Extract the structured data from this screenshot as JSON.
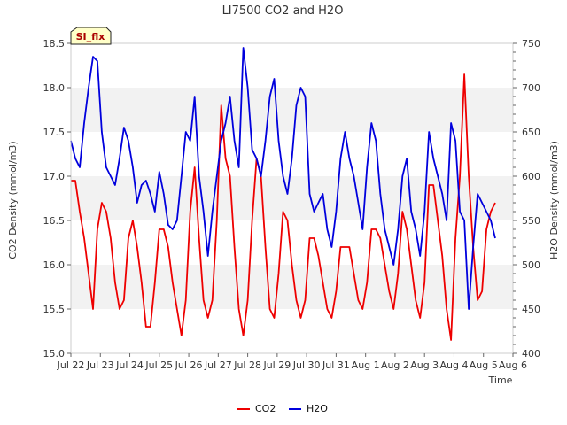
{
  "chart_data": {
    "type": "line",
    "title": "LI7500 CO2 and H2O",
    "xlabel": "Time",
    "ylabel_left": "CO2 Density (mmol/m3)",
    "ylabel_right": "H2O Density (mmol/m3)",
    "badge": "SI_flx",
    "x_ticks": [
      "Jul 22",
      "Jul 23",
      "Jul 24",
      "Jul 25",
      "Jul 26",
      "Jul 27",
      "Jul 28",
      "Jul 29",
      "Jul 30",
      "Jul 31",
      "Aug 1",
      "Aug 2",
      "Aug 3",
      "Aug 4",
      "Aug 5",
      "Aug 6"
    ],
    "xlim": [
      0,
      15
    ],
    "ylim_left": [
      15.0,
      18.5
    ],
    "yticks_left": [
      "15.0",
      "15.5",
      "16.0",
      "16.5",
      "17.0",
      "17.5",
      "18.0",
      "18.5"
    ],
    "ylim_right": [
      400,
      750
    ],
    "yticks_right": [
      "400",
      "450",
      "500",
      "550",
      "600",
      "650",
      "700",
      "750"
    ],
    "grid": "horizontal bands",
    "legend_position": "bottom-center",
    "series": [
      {
        "name": "CO2",
        "axis": "left",
        "color": "#ee0000",
        "x": [
          0.0,
          0.15,
          0.3,
          0.45,
          0.6,
          0.75,
          0.9,
          1.05,
          1.2,
          1.35,
          1.5,
          1.65,
          1.8,
          1.95,
          2.1,
          2.25,
          2.4,
          2.55,
          2.7,
          2.85,
          3.0,
          3.15,
          3.3,
          3.45,
          3.6,
          3.75,
          3.9,
          4.05,
          4.2,
          4.35,
          4.5,
          4.65,
          4.8,
          4.95,
          5.1,
          5.25,
          5.4,
          5.55,
          5.7,
          5.85,
          6.0,
          6.15,
          6.3,
          6.45,
          6.6,
          6.75,
          6.9,
          7.05,
          7.2,
          7.35,
          7.5,
          7.65,
          7.8,
          7.95,
          8.1,
          8.25,
          8.4,
          8.55,
          8.7,
          8.85,
          9.0,
          9.15,
          9.3,
          9.45,
          9.6,
          9.75,
          9.9,
          10.05,
          10.2,
          10.35,
          10.5,
          10.65,
          10.8,
          10.95,
          11.1,
          11.25,
          11.4,
          11.55,
          11.7,
          11.85,
          12.0,
          12.15,
          12.3,
          12.45,
          12.6,
          12.75,
          12.9,
          13.05,
          13.2,
          13.35,
          13.5,
          13.65,
          13.8,
          13.95,
          14.1,
          14.25,
          14.4
        ],
        "y": [
          16.95,
          16.95,
          16.6,
          16.3,
          15.9,
          15.5,
          16.4,
          16.7,
          16.6,
          16.3,
          15.8,
          15.5,
          15.6,
          16.3,
          16.5,
          16.2,
          15.8,
          15.3,
          15.3,
          15.8,
          16.4,
          16.4,
          16.2,
          15.8,
          15.5,
          15.2,
          15.6,
          16.6,
          17.1,
          16.3,
          15.6,
          15.4,
          15.6,
          16.5,
          17.8,
          17.2,
          17.0,
          16.2,
          15.5,
          15.2,
          15.6,
          16.5,
          17.2,
          17.0,
          16.2,
          15.5,
          15.4,
          15.9,
          16.6,
          16.5,
          16.0,
          15.6,
          15.4,
          15.6,
          16.3,
          16.3,
          16.1,
          15.8,
          15.5,
          15.4,
          15.7,
          16.2,
          16.2,
          16.2,
          15.9,
          15.6,
          15.5,
          15.8,
          16.4,
          16.4,
          16.3,
          16.0,
          15.7,
          15.5,
          15.9,
          16.6,
          16.4,
          16.0,
          15.6,
          15.4,
          15.8,
          16.9,
          16.9,
          16.5,
          16.1,
          15.5,
          15.15,
          16.3,
          17.0,
          18.15,
          17.0,
          16.2,
          15.6,
          15.7,
          16.4,
          16.6,
          16.7
        ]
      },
      {
        "name": "H2O",
        "axis": "right",
        "color": "#0000dd",
        "x": [
          0.0,
          0.15,
          0.3,
          0.45,
          0.6,
          0.75,
          0.9,
          1.05,
          1.2,
          1.35,
          1.5,
          1.65,
          1.8,
          1.95,
          2.1,
          2.25,
          2.4,
          2.55,
          2.7,
          2.85,
          3.0,
          3.15,
          3.3,
          3.45,
          3.6,
          3.75,
          3.9,
          4.05,
          4.2,
          4.35,
          4.5,
          4.65,
          4.8,
          4.95,
          5.1,
          5.25,
          5.4,
          5.55,
          5.7,
          5.85,
          6.0,
          6.15,
          6.3,
          6.45,
          6.6,
          6.75,
          6.9,
          7.05,
          7.2,
          7.35,
          7.5,
          7.65,
          7.8,
          7.95,
          8.1,
          8.25,
          8.4,
          8.55,
          8.7,
          8.85,
          9.0,
          9.15,
          9.3,
          9.45,
          9.6,
          9.75,
          9.9,
          10.05,
          10.2,
          10.35,
          10.5,
          10.65,
          10.8,
          10.95,
          11.1,
          11.25,
          11.4,
          11.55,
          11.7,
          11.85,
          12.0,
          12.15,
          12.3,
          12.45,
          12.6,
          12.75,
          12.9,
          13.05,
          13.2,
          13.35,
          13.5,
          13.65,
          13.8,
          13.95,
          14.1,
          14.25,
          14.4
        ],
        "y": [
          640,
          620,
          610,
          660,
          700,
          735,
          730,
          650,
          610,
          600,
          590,
          620,
          655,
          640,
          610,
          570,
          590,
          595,
          580,
          560,
          605,
          580,
          545,
          540,
          550,
          600,
          650,
          640,
          690,
          600,
          560,
          510,
          560,
          600,
          640,
          660,
          690,
          640,
          610,
          745,
          700,
          630,
          620,
          600,
          640,
          690,
          710,
          640,
          600,
          580,
          620,
          680,
          700,
          690,
          580,
          560,
          570,
          580,
          540,
          520,
          560,
          620,
          650,
          620,
          600,
          570,
          540,
          610,
          660,
          640,
          580,
          540,
          520,
          500,
          540,
          600,
          620,
          560,
          540,
          510,
          560,
          650,
          620,
          600,
          580,
          550,
          660,
          640,
          560,
          550,
          450,
          520,
          580,
          570,
          560,
          550,
          530
        ]
      }
    ]
  }
}
